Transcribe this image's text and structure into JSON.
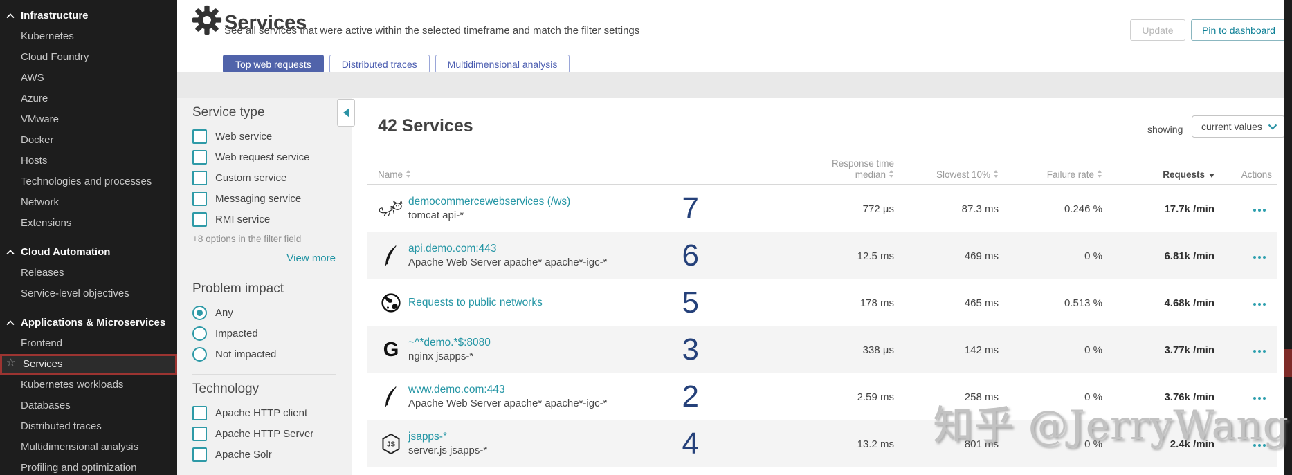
{
  "sidebar": {
    "selected_item": "Services",
    "sections": [
      {
        "label": "Infrastructure",
        "items": [
          "Kubernetes",
          "Cloud Foundry",
          "AWS",
          "Azure",
          "VMware",
          "Docker",
          "Hosts",
          "Technologies and processes",
          "Network",
          "Extensions"
        ]
      },
      {
        "label": "Cloud Automation",
        "items": [
          "Releases",
          "Service-level objectives"
        ]
      },
      {
        "label": "Applications & Microservices",
        "items": [
          "Frontend",
          "Services",
          "Kubernetes workloads",
          "Databases",
          "Distributed traces",
          "Multidimensional analysis",
          "Profiling and optimization"
        ]
      }
    ]
  },
  "header": {
    "title": "Services",
    "subtitle": "See all services that were active within the selected timeframe and match the filter settings",
    "update_label": "Update",
    "pin_label": "Pin to dashboard",
    "tabs": [
      {
        "label": "Top web requests",
        "active": true
      },
      {
        "label": "Distributed traces",
        "active": false
      },
      {
        "label": "Multidimensional analysis",
        "active": false
      }
    ]
  },
  "filters": {
    "service_type": {
      "heading": "Service type",
      "options": [
        "Web service",
        "Web request service",
        "Custom service",
        "Messaging service",
        "RMI service"
      ],
      "more_note": "+8 options in the filter field",
      "view_more": "View more"
    },
    "problem_impact": {
      "heading": "Problem impact",
      "options": [
        {
          "label": "Any",
          "selected": true
        },
        {
          "label": "Impacted",
          "selected": false
        },
        {
          "label": "Not impacted",
          "selected": false
        }
      ]
    },
    "technology": {
      "heading": "Technology",
      "options": [
        "Apache HTTP client",
        "Apache HTTP Server",
        "Apache Solr"
      ]
    }
  },
  "table": {
    "count_title": "42 Services",
    "showing_label": "showing",
    "showing_value": "current values",
    "headers": {
      "name": "Name",
      "response_line1": "Response time",
      "response_line2": "median",
      "slowest": "Slowest 10%",
      "failure": "Failure rate",
      "requests": "Requests",
      "actions": "Actions"
    },
    "sorted_by": "Requests",
    "rows": [
      {
        "name": "democommercewebservices (/ws)",
        "tech": "tomcat api-*",
        "icon": "tomcat",
        "count": "7",
        "response_median": "772 µs",
        "slowest": "87.3 ms",
        "failure": "0.246 %",
        "requests": "17.7k /min"
      },
      {
        "name": "api.demo.com:443",
        "tech": "Apache Web Server apache* apache*-igc-*",
        "icon": "apache",
        "count": "6",
        "response_median": "12.5 ms",
        "slowest": "469 ms",
        "failure": "0 %",
        "requests": "6.81k /min"
      },
      {
        "name": "Requests to public networks",
        "tech": "",
        "icon": "globe",
        "count": "5",
        "response_median": "178 ms",
        "slowest": "465 ms",
        "failure": "0.513 %",
        "requests": "4.68k /min"
      },
      {
        "name": "~^*demo.*$:8080",
        "tech": "nginx jsapps-*",
        "icon": "nginx",
        "count": "3",
        "response_median": "338 µs",
        "slowest": "142 ms",
        "failure": "0 %",
        "requests": "3.77k /min"
      },
      {
        "name": "www.demo.com:443",
        "tech": "Apache Web Server apache* apache*-igc-*",
        "icon": "apache",
        "count": "2",
        "response_median": "2.59 ms",
        "slowest": "258 ms",
        "failure": "0 %",
        "requests": "3.76k /min"
      },
      {
        "name": "jsapps-*",
        "tech": "server.js jsapps-*",
        "icon": "nodejs",
        "count": "4",
        "response_median": "13.2 ms",
        "slowest": "801 ms",
        "failure": "0 %",
        "requests": "2.4k /min"
      }
    ]
  },
  "watermark": "知乎 @JerryWang",
  "colors": {
    "accent_teal": "#2e9aa7",
    "link": "#2596a5",
    "tab_active": "#5063aa",
    "count_blue": "#25417a",
    "sidebar_bg": "#1d1d1d",
    "selected_border_red": "#9c3431",
    "stripe": "#f4f4f4"
  }
}
